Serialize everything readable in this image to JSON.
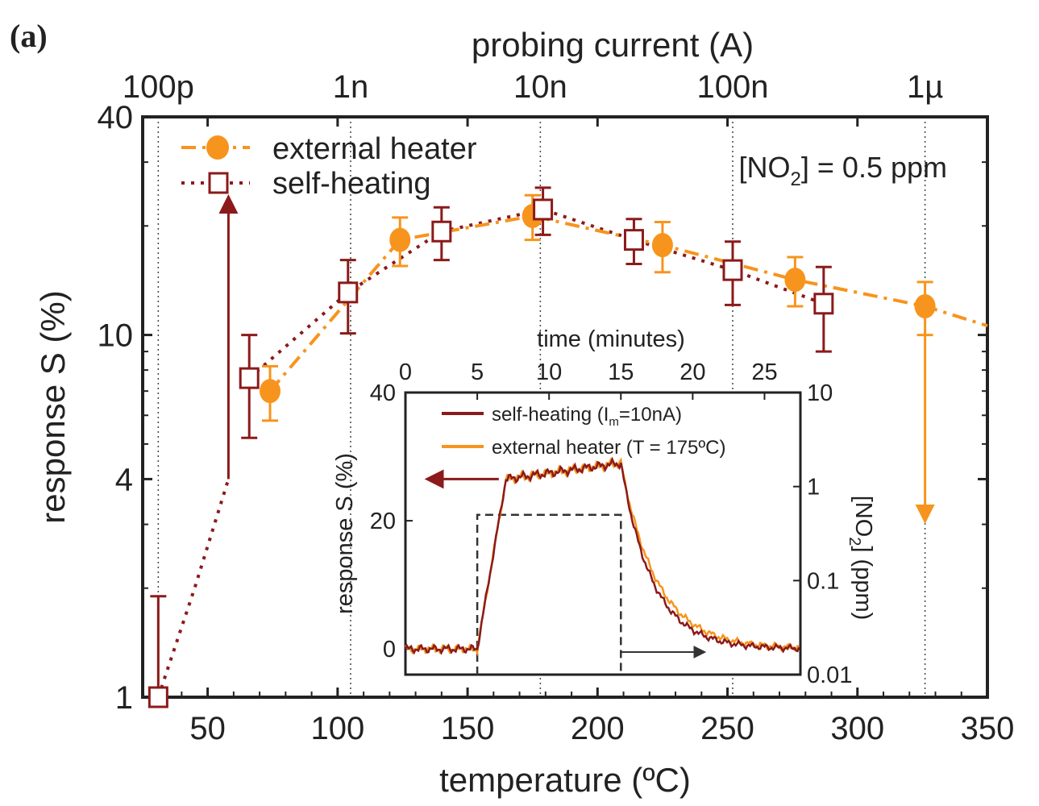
{
  "chart_data": {
    "type": "scatter",
    "panel_label": "(a)",
    "xlabel": "temperature (ºC)",
    "ylabel": "response S (%)",
    "top_xlabel": "probing current (A)",
    "annotation": "[NO2] = 0.5 ppm",
    "annotation_parts": {
      "pre": "[NO",
      "sub": "2",
      "post": "] = 0.5 ppm"
    },
    "xlim": [
      25,
      350
    ],
    "ylim": [
      1,
      40
    ],
    "yscale": "log",
    "x_ticks": [
      50,
      100,
      150,
      200,
      250,
      300,
      350
    ],
    "y_ticks": [
      1,
      4,
      10,
      40
    ],
    "top_ticks": [
      {
        "label": "100p",
        "temperature": 31
      },
      {
        "label": "1n",
        "temperature": 105
      },
      {
        "label": "10n",
        "temperature": 178
      },
      {
        "label": "100n",
        "temperature": 252
      },
      {
        "label": "1µ",
        "temperature": 326
      }
    ],
    "legend_position": "top-left",
    "series": [
      {
        "name": "external heater",
        "color": "#f7941d",
        "marker": "circle",
        "line": "dash-dot",
        "points": [
          [
            74,
            7.0,
            1.2
          ],
          [
            124,
            18.3,
            2.8
          ],
          [
            175,
            21.3,
            3.0
          ],
          [
            225,
            17.7,
            2.8
          ],
          [
            276,
            14.2,
            2.2
          ],
          [
            326,
            12.0,
            2.0
          ]
        ]
      },
      {
        "name": "self-heating",
        "color": "#8b1a1a",
        "marker": "open-square",
        "line": "dotted",
        "points": [
          [
            31,
            1.0,
            0.9
          ],
          [
            66,
            7.6,
            2.4
          ],
          [
            104,
            13.1,
            3.0
          ],
          [
            140,
            19.3,
            3.2
          ],
          [
            179,
            22.2,
            3.3
          ],
          [
            214,
            18.3,
            2.6
          ],
          [
            252,
            15.1,
            3.0
          ],
          [
            287,
            12.2,
            3.2
          ]
        ]
      }
    ],
    "extra_curves": {
      "self_heating_low": [
        [
          31,
          1.0
        ],
        [
          45,
          2.0
        ],
        [
          58,
          4.0
        ]
      ],
      "external_tail": [
        [
          326,
          12.0
        ],
        [
          350,
          10.6
        ]
      ]
    },
    "arrows": [
      {
        "series": "self-heating",
        "temperature": 58,
        "from": 4.0,
        "to": 23,
        "direction": "up"
      },
      {
        "series": "external heater",
        "temperature": 326,
        "from": 10.3,
        "to": 3.2,
        "direction": "down"
      }
    ],
    "inset": {
      "xlabel": "time (minutes)",
      "ylabel": "response S (%)",
      "y2label_parts": {
        "pre": "[NO",
        "sub": "2",
        "post": "] (ppm)"
      },
      "xlim": [
        0,
        27.5
      ],
      "ylim": [
        -4,
        40
      ],
      "x_ticks": [
        0,
        5,
        10,
        15,
        20,
        25
      ],
      "y_ticks": [
        0,
        20,
        40
      ],
      "y2_ticks": [
        "0.01",
        "0.1",
        "1",
        "10"
      ],
      "y2lim_log": [
        0.01,
        10
      ],
      "legend": [
        {
          "name": "self-heating (I",
          "sub": "m",
          "post": "=10nA)",
          "color": "#8b1a1a"
        },
        {
          "name": "external heater (T = 175ºC)",
          "sub": "",
          "post": "",
          "color": "#f7941d"
        }
      ],
      "no2_pulse": {
        "start": 5,
        "end": 15,
        "ppm": 0.5
      },
      "response_model": {
        "baseline": 0,
        "plateau_start": 26.5,
        "plateau_end": 29,
        "rise_start": 5,
        "rise_end": 7,
        "fall_start": 15,
        "fall_tau": 2.2
      }
    }
  }
}
